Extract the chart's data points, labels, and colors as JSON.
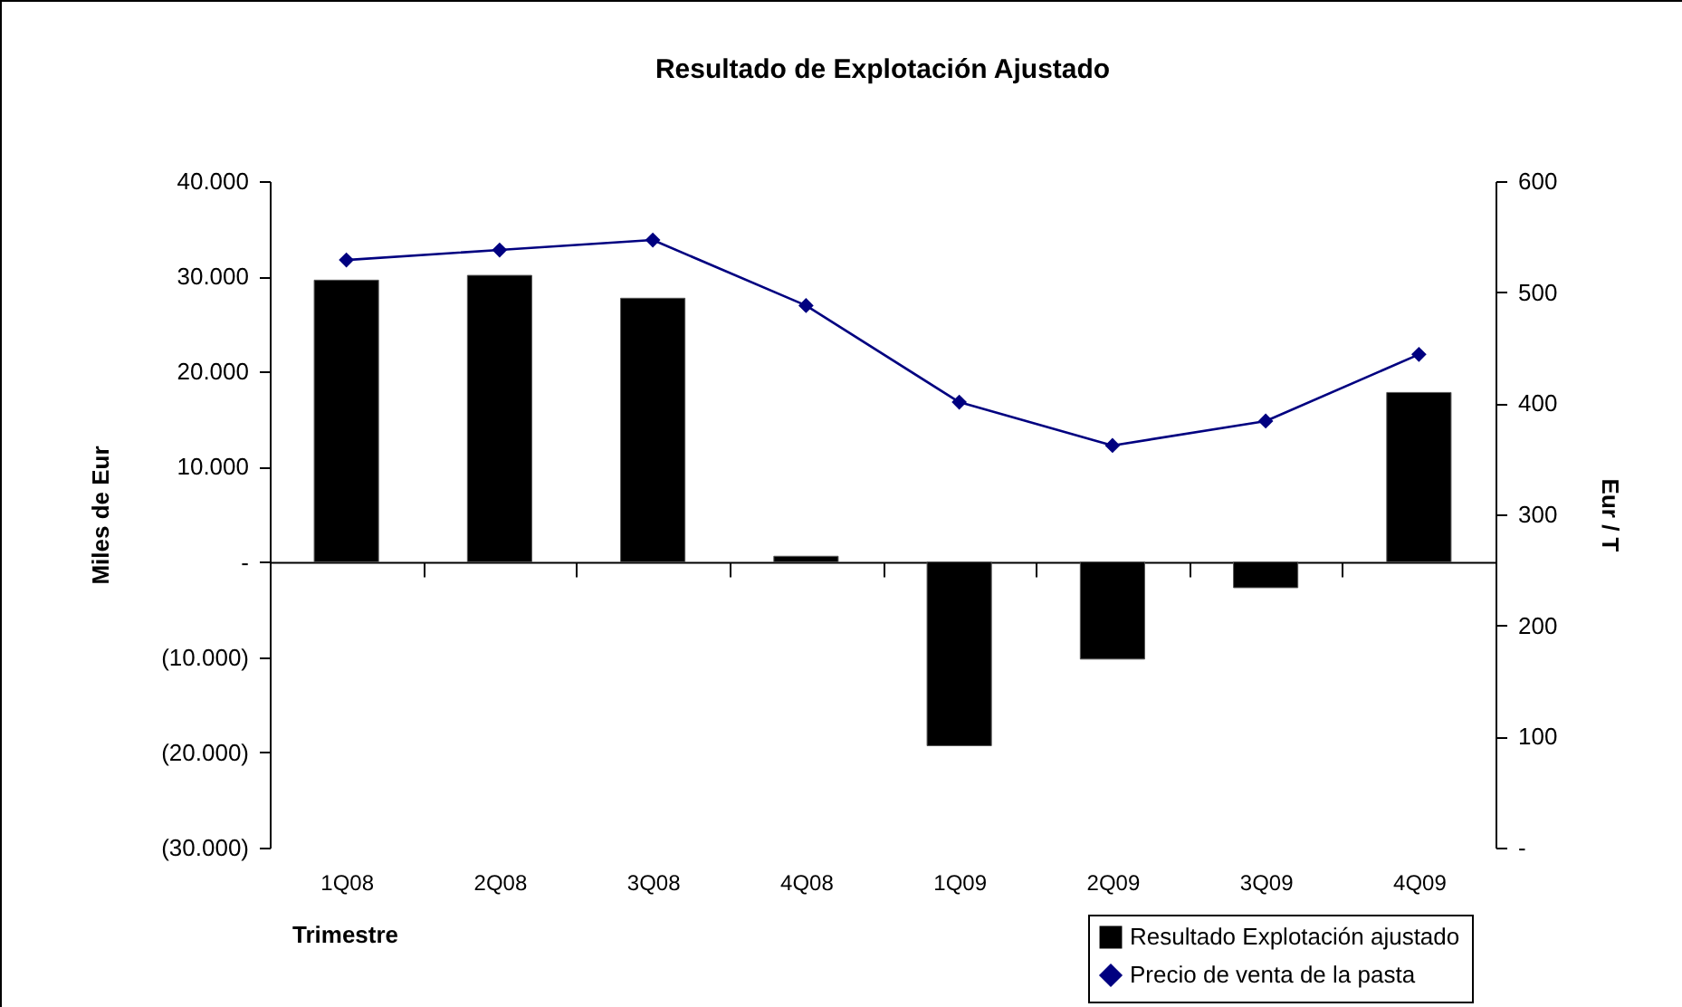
{
  "chart_data": {
    "type": "bar",
    "title": "Resultado de Explotación Ajustado",
    "xlabel": "Trimestre",
    "ylabel": "Miles de Eur",
    "y2label": "Eur / T",
    "categories": [
      "1Q08",
      "2Q08",
      "3Q08",
      "4Q08",
      "1Q09",
      "2Q09",
      "3Q09",
      "4Q09"
    ],
    "series": [
      {
        "name": "Resultado Explotación ajustado",
        "color": "#000000",
        "values": [
          29600,
          30100,
          27700,
          600,
          -19300,
          -10200,
          -2700,
          17800
        ]
      },
      {
        "name": "Precio de venta de la pasta",
        "type": "line",
        "axis": "y2",
        "color": "#000080",
        "values": [
          529,
          538,
          547,
          488,
          401,
          362,
          384,
          444
        ]
      }
    ],
    "ylim": [
      -30000,
      40000
    ],
    "yticks": [
      {
        "value": -30000,
        "label": "(30.000)"
      },
      {
        "value": -20000,
        "label": "(20.000)"
      },
      {
        "value": -10000,
        "label": "(10.000)"
      },
      {
        "value": 0,
        "label": "-"
      },
      {
        "value": 10000,
        "label": "10.000"
      },
      {
        "value": 20000,
        "label": "20.000"
      },
      {
        "value": 30000,
        "label": "30.000"
      },
      {
        "value": 40000,
        "label": "40.000"
      }
    ],
    "y2lim": [
      0,
      600
    ],
    "y2ticks": [
      {
        "value": 0,
        "label": "-"
      },
      100,
      200,
      300,
      400,
      500,
      600
    ],
    "marker": "diamond",
    "line_style": "solid",
    "legend": "bottom right"
  }
}
